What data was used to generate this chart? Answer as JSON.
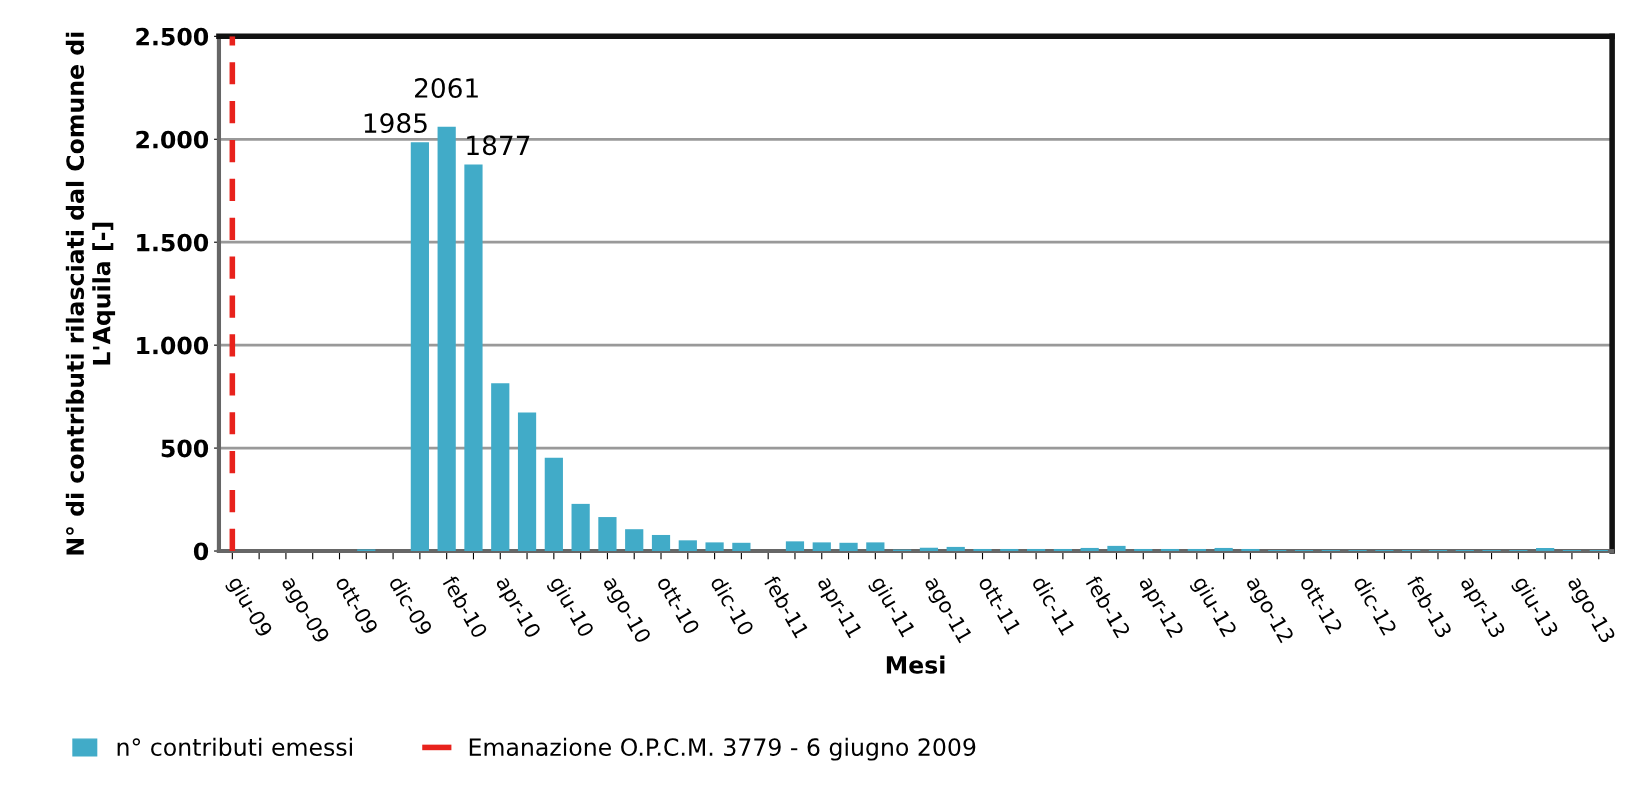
{
  "chart_data": {
    "type": "bar",
    "xlabel": "Mesi",
    "ylabel": "N° di contributi rilasciati dal Comune di L'Aquila [-]",
    "categories": [
      "giu-09",
      null,
      "ago-09",
      null,
      "ott-09",
      null,
      "dic-09",
      null,
      "feb-10",
      null,
      "apr-10",
      null,
      "giu-10",
      null,
      "ago-10",
      null,
      "ott-10",
      null,
      "dic-10",
      null,
      "feb-11",
      null,
      "apr-11",
      null,
      "giu-11",
      null,
      "ago-11",
      null,
      "ott-11",
      null,
      "dic-11",
      null,
      "feb-12",
      null,
      "apr-12",
      null,
      "giu-12",
      null,
      "ago-12",
      null,
      "ott-12",
      null,
      "dic-12",
      null,
      "feb-13",
      null,
      "apr-13",
      null,
      "giu-13",
      null,
      "ago-13",
      null
    ],
    "series": [
      {
        "name": "n° contributi emessi",
        "color": "#41abc8",
        "values": [
          0,
          0,
          0,
          0,
          0,
          8,
          0,
          1985,
          2061,
          1877,
          815,
          673,
          453,
          229,
          165,
          106,
          78,
          52,
          42,
          40,
          0,
          47,
          42,
          40,
          42,
          7,
          16,
          20,
          10,
          10,
          10,
          10,
          15,
          25,
          10,
          10,
          10,
          15,
          10,
          5,
          5,
          5,
          5,
          5,
          5,
          5,
          5,
          5,
          5,
          15,
          5,
          5
        ],
        "value_labels": [
          null,
          null,
          null,
          null,
          null,
          null,
          null,
          "1985",
          "2061",
          "1877",
          null,
          null,
          null,
          null,
          null,
          null,
          null,
          null,
          null,
          null,
          null,
          null,
          null,
          null,
          null,
          null,
          null,
          null,
          null,
          null,
          null,
          null,
          null,
          null,
          null,
          null,
          null,
          null,
          null,
          null,
          null,
          null,
          null,
          null,
          null,
          null,
          null,
          null,
          null,
          null,
          null,
          null
        ]
      }
    ],
    "ylim": [
      0,
      2500
    ],
    "yticks": [
      0,
      {
        "value": 500,
        "label": "500"
      },
      {
        "value": 1000,
        "label": "1.000"
      },
      {
        "value": 1500,
        "label": "1.500"
      },
      {
        "value": 2000,
        "label": "2.000"
      },
      {
        "value": 2500,
        "label": "2.500"
      }
    ],
    "ref_lines": [
      {
        "axis": "x",
        "value": "giu-09",
        "label": "Emanazione O.P.C.M. 3779 - 6 giugno 2009",
        "color": "#e8221c",
        "line_style": "dashed"
      }
    ],
    "grid": "y",
    "legend": "bottom"
  }
}
